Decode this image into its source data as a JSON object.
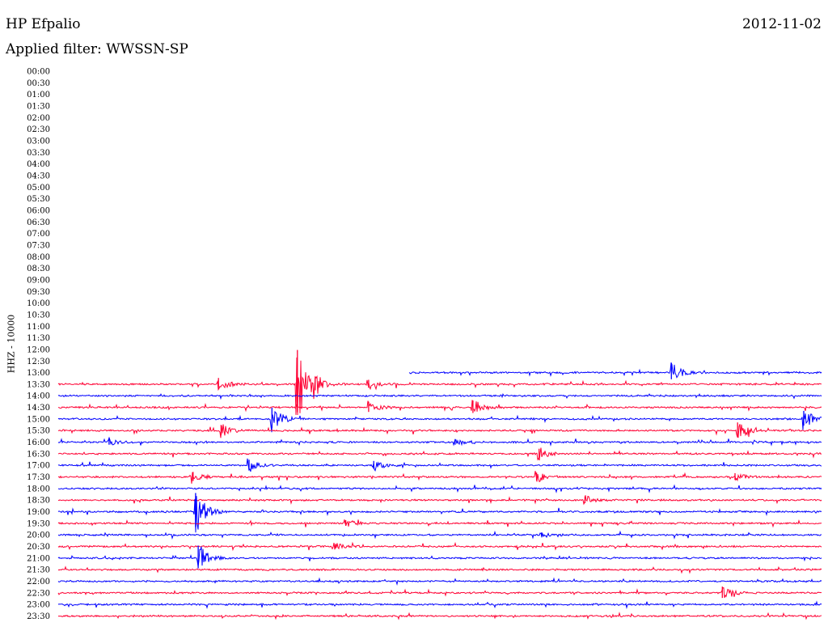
{
  "header": {
    "station": "HP Efpalio",
    "date": "2012-11-02",
    "filter_label": "Applied filter: WWSSN-SP"
  },
  "chart_data": {
    "type": "line",
    "title": "HP Efpalio",
    "subtitle": "Applied filter: WWSSN-SP",
    "ylabel": "HHZ - 10000",
    "xlabel": "",
    "row_labels": [
      "00:00",
      "00:30",
      "01:00",
      "01:30",
      "02:00",
      "02:30",
      "03:00",
      "03:30",
      "04:00",
      "04:30",
      "05:00",
      "05:30",
      "06:00",
      "06:30",
      "07:00",
      "07:30",
      "08:00",
      "08:30",
      "09:00",
      "09:30",
      "10:00",
      "10:30",
      "11:00",
      "11:30",
      "12:00",
      "12:30",
      "13:00",
      "13:30",
      "14:00",
      "14:30",
      "15:00",
      "15:30",
      "16:00",
      "16:30",
      "17:00",
      "17:30",
      "18:00",
      "18:30",
      "19:00",
      "19:30",
      "20:00",
      "20:30",
      "21:00",
      "21:30",
      "22:00",
      "22:30",
      "23:00",
      "23:30"
    ],
    "trace_colors": [
      "#ff0033",
      "#0000ff"
    ],
    "first_trace_row": "13:00",
    "events": [
      {
        "row": "13:00",
        "minute": 24.1,
        "amplitude": 1.3
      },
      {
        "row": "13:30",
        "minute": 6.3,
        "amplitude": 1.0
      },
      {
        "row": "13:30",
        "minute": 9.4,
        "amplitude": 5.5
      },
      {
        "row": "13:30",
        "minute": 10.1,
        "amplitude": 1.2
      },
      {
        "row": "13:30",
        "minute": 12.2,
        "amplitude": 0.7
      },
      {
        "row": "14:30",
        "minute": 12.2,
        "amplitude": 0.9
      },
      {
        "row": "14:30",
        "minute": 16.3,
        "amplitude": 1.1
      },
      {
        "row": "15:00",
        "minute": 8.4,
        "amplitude": 1.8
      },
      {
        "row": "15:00",
        "minute": 29.3,
        "amplitude": 1.3
      },
      {
        "row": "15:30",
        "minute": 6.4,
        "amplitude": 0.9
      },
      {
        "row": "15:30",
        "minute": 26.7,
        "amplitude": 1.3
      },
      {
        "row": "16:00",
        "minute": 2.0,
        "amplitude": 0.5
      },
      {
        "row": "16:00",
        "minute": 15.6,
        "amplitude": 0.5
      },
      {
        "row": "16:30",
        "minute": 18.9,
        "amplitude": 0.8
      },
      {
        "row": "17:00",
        "minute": 7.5,
        "amplitude": 0.9
      },
      {
        "row": "17:00",
        "minute": 12.4,
        "amplitude": 0.7
      },
      {
        "row": "17:30",
        "minute": 5.3,
        "amplitude": 0.8
      },
      {
        "row": "17:30",
        "minute": 18.8,
        "amplitude": 0.7
      },
      {
        "row": "17:30",
        "minute": 26.6,
        "amplitude": 0.6
      },
      {
        "row": "18:30",
        "minute": 20.7,
        "amplitude": 0.6
      },
      {
        "row": "19:00",
        "minute": 5.4,
        "amplitude": 3.0
      },
      {
        "row": "19:30",
        "minute": 11.3,
        "amplitude": 0.5
      },
      {
        "row": "20:00",
        "minute": 19.0,
        "amplitude": 0.4
      },
      {
        "row": "20:30",
        "minute": 10.9,
        "amplitude": 0.4
      },
      {
        "row": "21:00",
        "minute": 5.5,
        "amplitude": 2.0
      },
      {
        "row": "22:30",
        "minute": 26.1,
        "amplitude": 1.0
      }
    ]
  }
}
